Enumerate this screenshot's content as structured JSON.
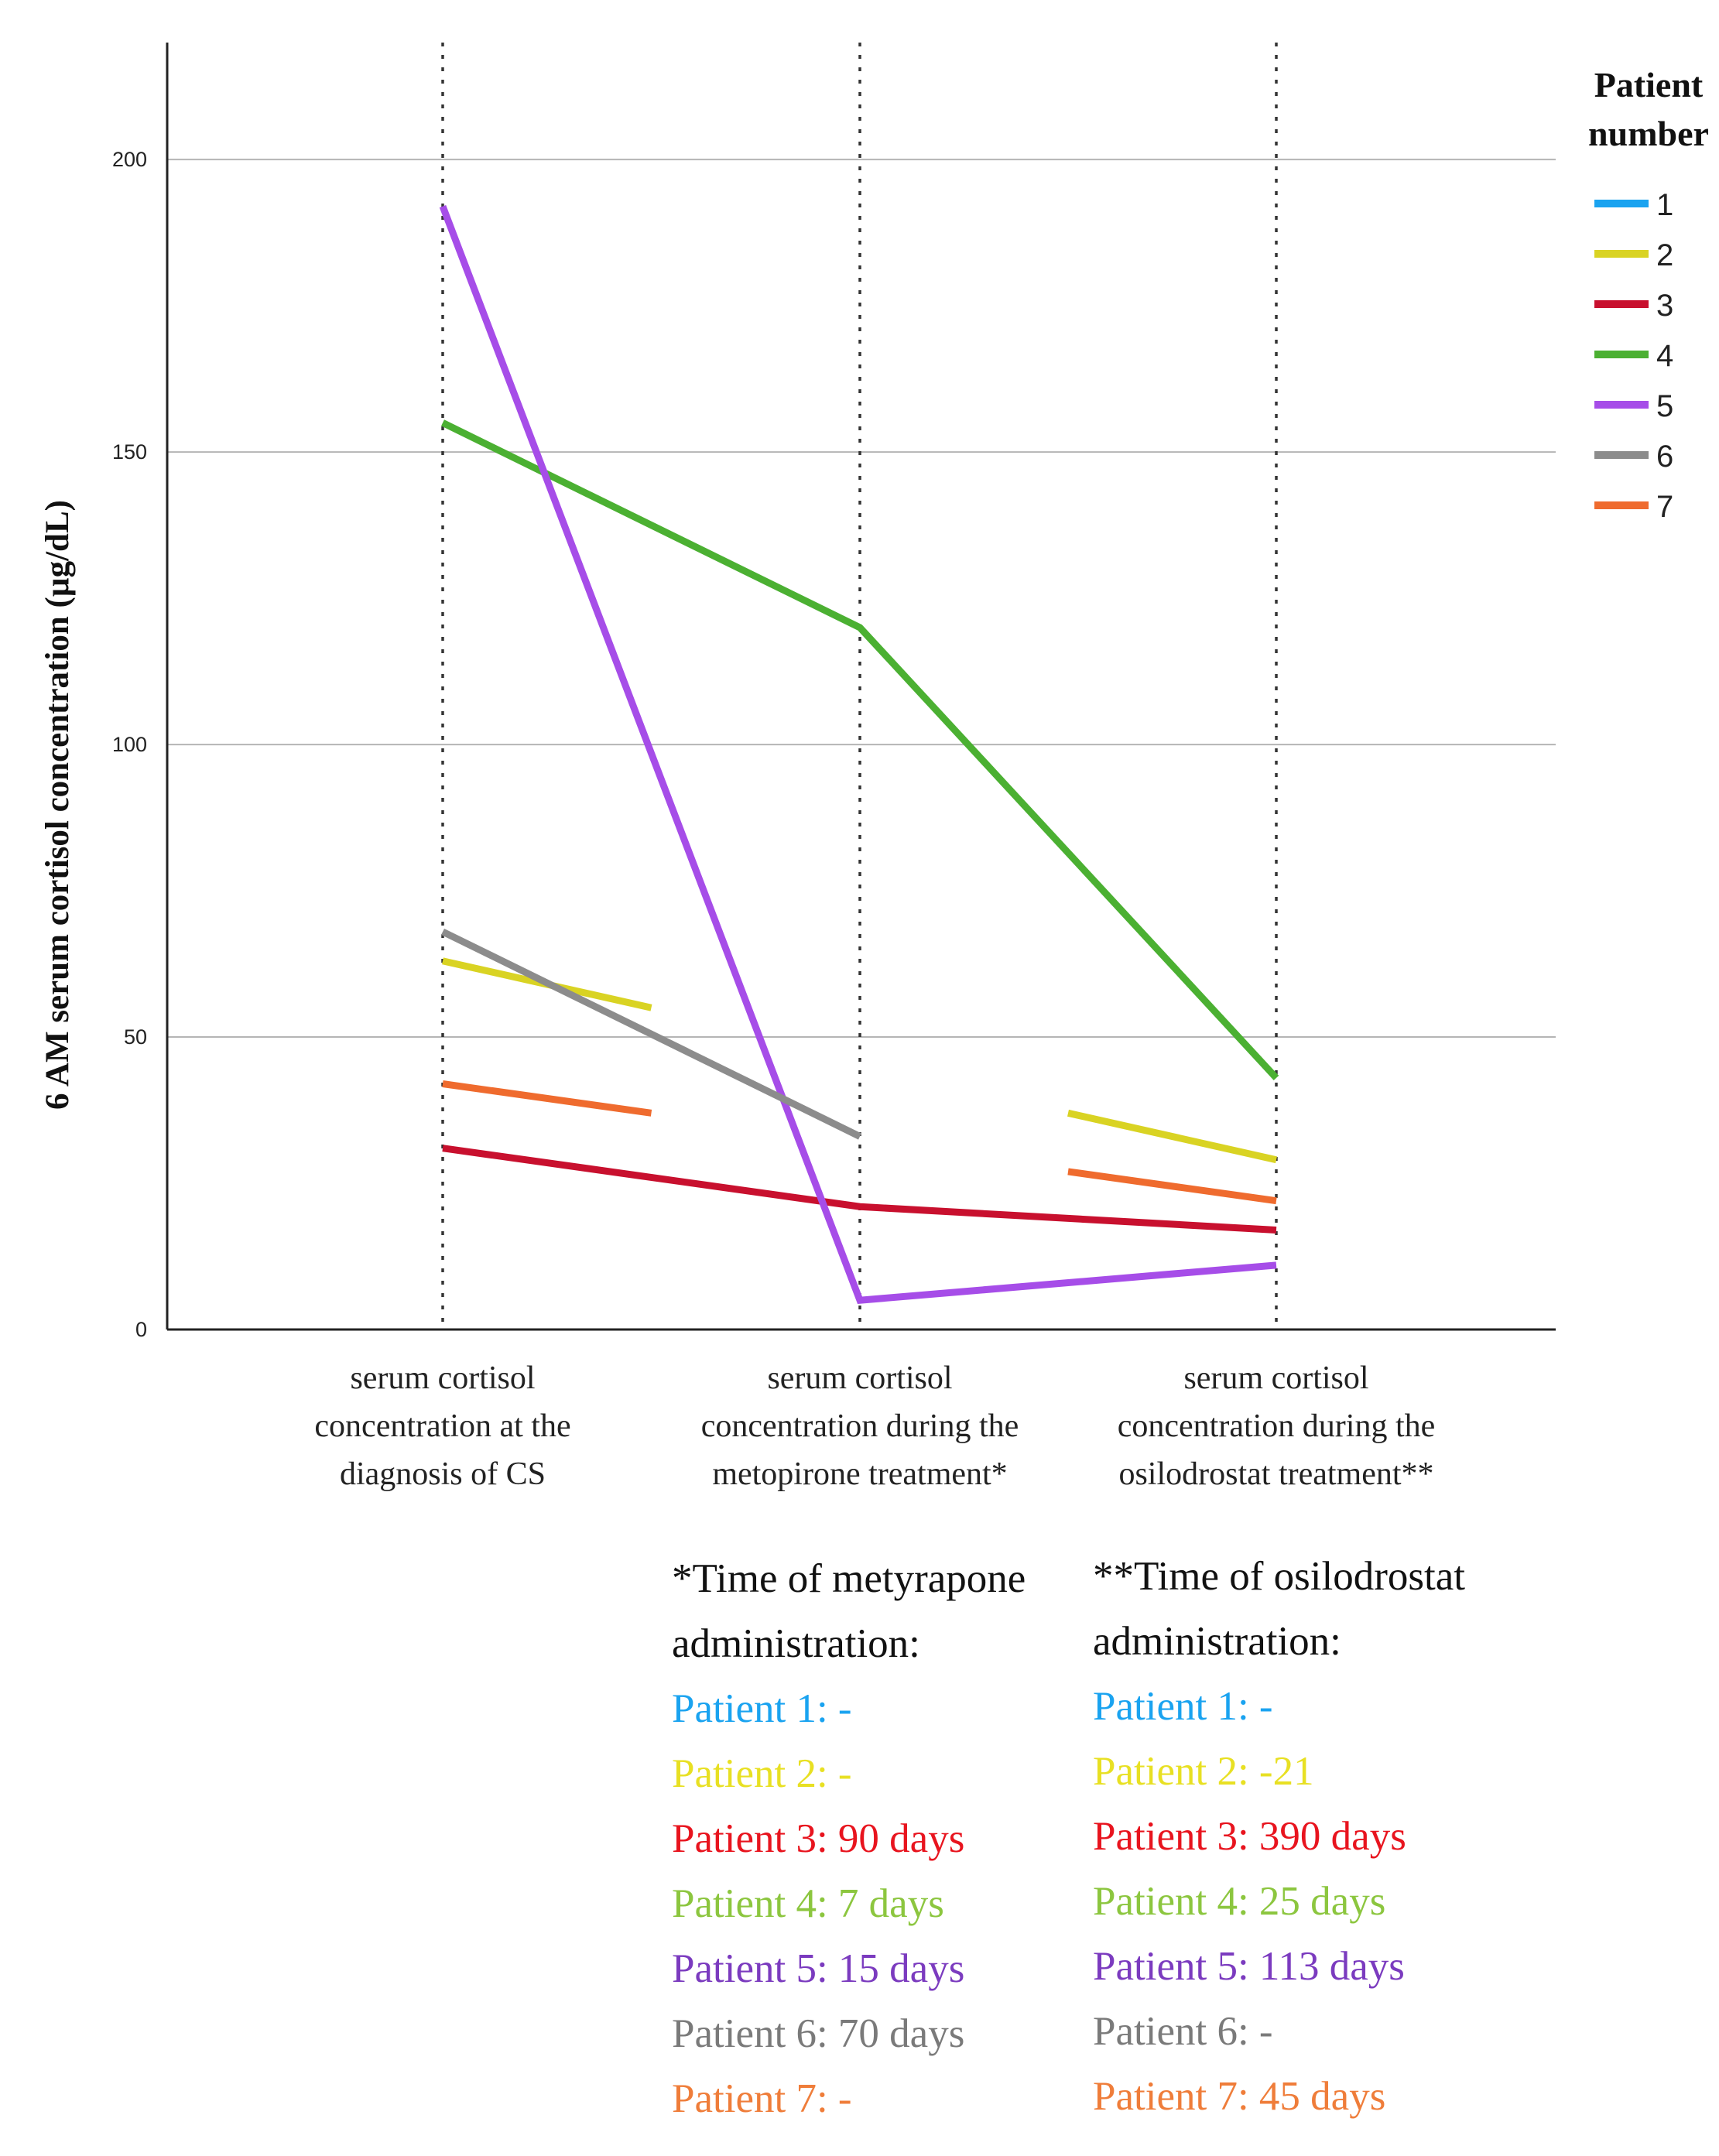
{
  "chart_data": {
    "type": "line",
    "title": "",
    "ylabel": "6 AM serum cortisol concentration (µg/dL)",
    "xlabel": "",
    "ylim": [
      0,
      220
    ],
    "yticks": [
      0,
      50,
      100,
      150,
      200
    ],
    "grid": true,
    "categories": [
      [
        "serum cortisol",
        "concentration at the",
        "diagnosis of CS"
      ],
      [
        "serum cortisol",
        "concentration during the",
        "metopirone treatment*"
      ],
      [
        "serum cortisol",
        "concentration during the",
        "osilodrostat treatment**"
      ]
    ],
    "legend": {
      "title_line1": "Patient",
      "title_line2": "number",
      "position": "top-right"
    },
    "series": [
      {
        "name": "1",
        "color": "#1aa3f0",
        "segments": []
      },
      {
        "name": "2",
        "color": "#d9d323",
        "segments": [
          [
            [
              0,
              63
            ],
            [
              0.5,
              55
            ]
          ],
          [
            [
              1.5,
              37
            ],
            [
              2,
              29
            ]
          ]
        ]
      },
      {
        "name": "3",
        "color": "#c8102e",
        "segments": [
          [
            [
              0,
              31
            ],
            [
              1,
              21
            ],
            [
              2,
              17
            ]
          ]
        ]
      },
      {
        "name": "4",
        "color": "#4bb032",
        "segments": [
          [
            [
              0,
              155
            ],
            [
              1,
              120
            ],
            [
              2,
              43
            ]
          ]
        ]
      },
      {
        "name": "5",
        "color": "#a64de8",
        "segments": [
          [
            [
              0,
              192
            ],
            [
              1,
              5
            ],
            [
              2,
              11
            ]
          ]
        ]
      },
      {
        "name": "6",
        "color": "#8c8c8c",
        "segments": [
          [
            [
              0,
              68
            ],
            [
              1,
              33
            ]
          ]
        ]
      },
      {
        "name": "7",
        "color": "#ef6b2e",
        "segments": [
          [
            [
              0,
              42
            ],
            [
              0.5,
              37
            ]
          ],
          [
            [
              1.5,
              27
            ],
            [
              2,
              22
            ]
          ]
        ]
      }
    ]
  },
  "notes": {
    "metyrapone": {
      "heading_line1": "*Time of metyrapone",
      "heading_line2": "administration:",
      "items": [
        {
          "text": "Patient 1: -",
          "color": "#1aa3f0"
        },
        {
          "text": "Patient 2: -",
          "color": "#e8e023"
        },
        {
          "text": "Patient 3: 90 days",
          "color": "#e8141e"
        },
        {
          "text": "Patient 4: 7 days",
          "color": "#8cc63f"
        },
        {
          "text": "Patient 5: 15 days",
          "color": "#7b3bbf"
        },
        {
          "text": "Patient 6: 70 days",
          "color": "#7a7a7a"
        },
        {
          "text": "Patient 7: -",
          "color": "#ef7d3a"
        }
      ]
    },
    "osilodrostat": {
      "heading_line1": "**Time of osilodrostat",
      "heading_line2": "administration:",
      "items": [
        {
          "text": "Patient 1: -",
          "color": "#1aa3f0"
        },
        {
          "text": "Patient 2: -21",
          "color": "#e8e023"
        },
        {
          "text": "Patient 3: 390 days",
          "color": "#e8141e"
        },
        {
          "text": "Patient 4: 25 days",
          "color": "#8cc63f"
        },
        {
          "text": "Patient 5: 113 days",
          "color": "#7b3bbf"
        },
        {
          "text": "Patient 6: -",
          "color": "#7a7a7a"
        },
        {
          "text": "Patient 7: 45 days",
          "color": "#ef7d3a"
        }
      ]
    }
  }
}
